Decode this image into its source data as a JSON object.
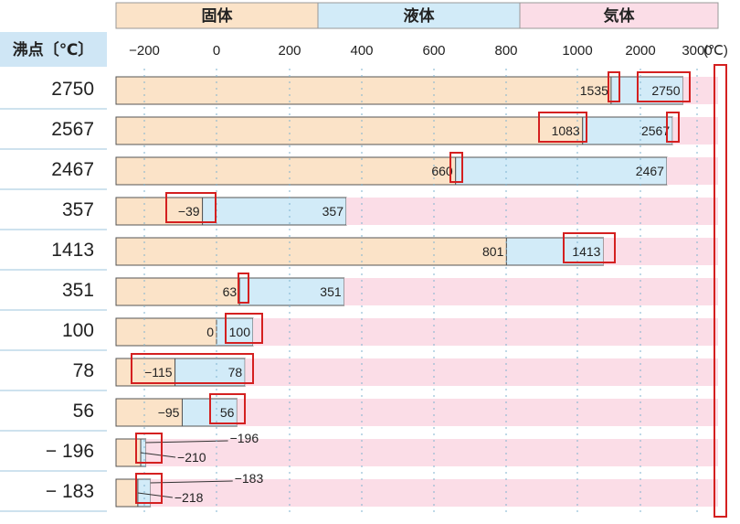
{
  "chart_data": {
    "type": "bar",
    "row_header": "沸点〔℃〕",
    "phases": [
      {
        "name": "固体",
        "color": "#fbe3c8"
      },
      {
        "name": "液体",
        "color": "#d2ebf8"
      },
      {
        "name": "気体",
        "color": "#fbdde7"
      }
    ],
    "x_ticks": [
      "−200",
      "0",
      "200",
      "400",
      "600",
      "800",
      "1000",
      "2000",
      "3000"
    ],
    "x_unit": "(℃)",
    "categories": [
      "2750",
      "2567",
      "2467",
      "357",
      "1413",
      "351",
      "100",
      "78",
      "56",
      "− 196",
      "− 183"
    ],
    "melting_point": [
      1535,
      1083,
      660,
      -39,
      801,
      63,
      0,
      -115,
      -95,
      -210,
      -218
    ],
    "boiling_point": [
      2750,
      2567,
      2467,
      357,
      1413,
      351,
      100,
      78,
      56,
      -196,
      -183
    ],
    "melting_labels": [
      "1535",
      "1083",
      "660",
      "−39",
      "801",
      "63",
      "0",
      "−115",
      "−95",
      "−210",
      "−218"
    ],
    "boiling_labels": [
      "2750",
      "2567",
      "2467",
      "357",
      "1413",
      "351",
      "100",
      "78",
      "56",
      "−196",
      "−183"
    ],
    "colors": {
      "highlight": "#d42020",
      "grid": "#7fb3cf",
      "border": "#555555",
      "header_bg": "#cfe6f5"
    }
  }
}
